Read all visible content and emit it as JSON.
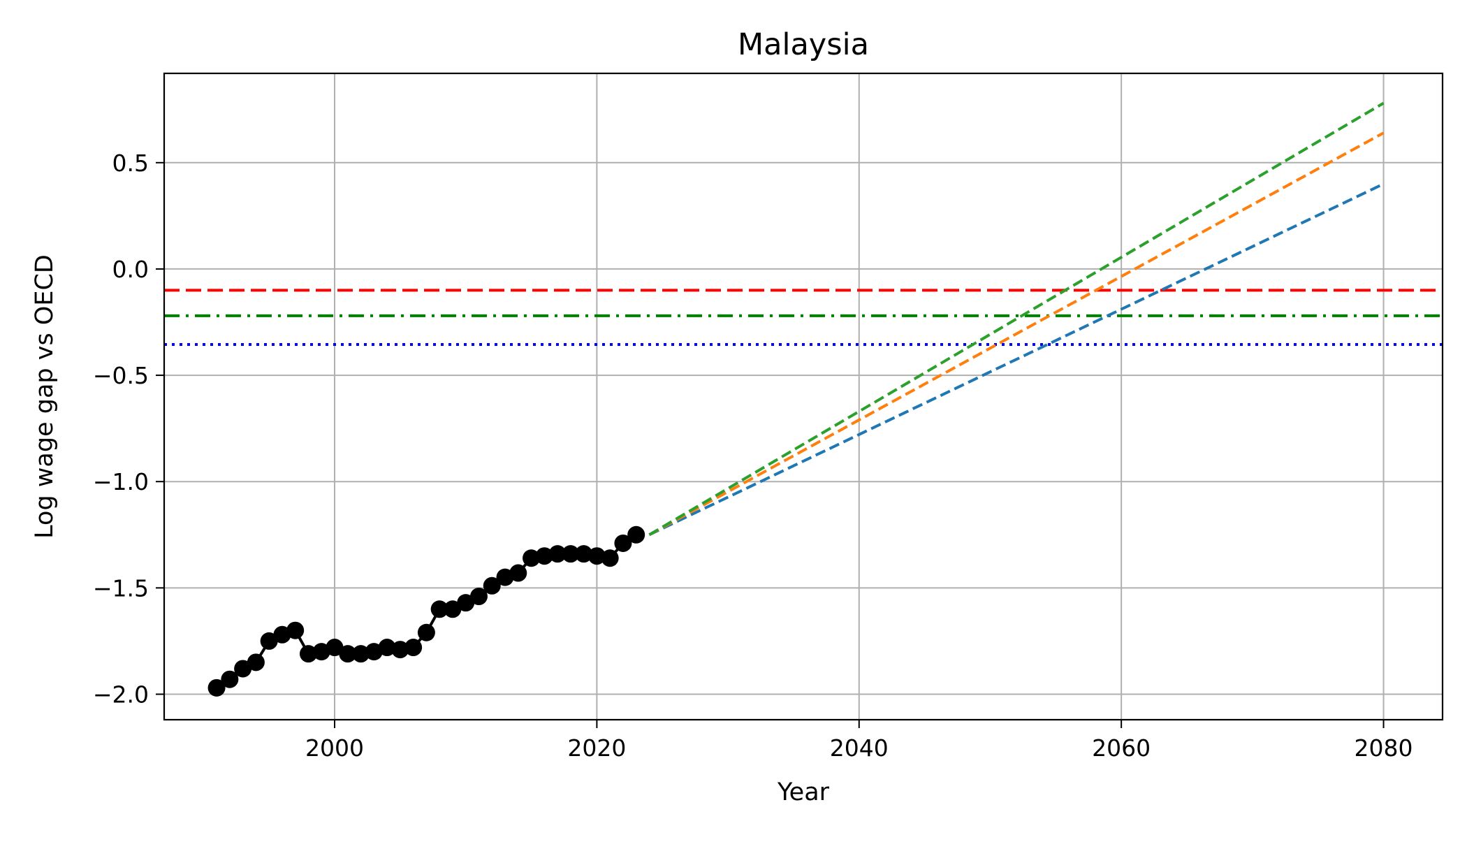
{
  "chart_data": {
    "type": "line",
    "title": "Malaysia",
    "xlabel": "Year",
    "ylabel": "Log wage gap vs OECD",
    "xlim": [
      1987,
      2084.5
    ],
    "ylim": [
      -2.12,
      0.92
    ],
    "x_ticks": [
      2000,
      2020,
      2040,
      2060,
      2080
    ],
    "y_ticks": [
      0.5,
      0.0,
      -0.5,
      -1.0,
      -1.5,
      -2.0
    ],
    "x_tick_labels": [
      "2000",
      "2020",
      "2040",
      "2060",
      "2080"
    ],
    "y_tick_labels": [
      "0.5",
      "0.0",
      "−0.5",
      "−1.0",
      "−1.5",
      "−2.0"
    ],
    "grid": true,
    "historical": {
      "color": "#000000",
      "marker": "circle",
      "x": [
        1991,
        1992,
        1993,
        1994,
        1995,
        1996,
        1997,
        1998,
        1999,
        2000,
        2001,
        2002,
        2003,
        2004,
        2005,
        2006,
        2007,
        2008,
        2009,
        2010,
        2011,
        2012,
        2013,
        2014,
        2015,
        2016,
        2017,
        2018,
        2019,
        2020,
        2021,
        2022,
        2023
      ],
      "y": [
        -1.97,
        -1.93,
        -1.88,
        -1.85,
        -1.75,
        -1.72,
        -1.7,
        -1.81,
        -1.8,
        -1.78,
        -1.81,
        -1.81,
        -1.8,
        -1.78,
        -1.79,
        -1.78,
        -1.71,
        -1.6,
        -1.6,
        -1.57,
        -1.54,
        -1.49,
        -1.45,
        -1.43,
        -1.36,
        -1.35,
        -1.34,
        -1.34,
        -1.34,
        -1.35,
        -1.36,
        -1.29,
        -1.25
      ]
    },
    "projections": [
      {
        "color": "#1f77b4",
        "x": [
          2024,
          2080
        ],
        "y": [
          -1.25,
          0.4
        ]
      },
      {
        "color": "#ff7f0e",
        "x": [
          2024,
          2080
        ],
        "y": [
          -1.25,
          0.64
        ]
      },
      {
        "color": "#2ca02c",
        "x": [
          2024,
          2080
        ],
        "y": [
          -1.25,
          0.78
        ]
      }
    ],
    "reference_lines": [
      {
        "y": -0.1,
        "color": "#ff0000",
        "style": "dashed"
      },
      {
        "y": -0.22,
        "color": "#008000",
        "style": "dashdot"
      },
      {
        "y": -0.355,
        "color": "#0000ff",
        "style": "dotted"
      }
    ]
  }
}
